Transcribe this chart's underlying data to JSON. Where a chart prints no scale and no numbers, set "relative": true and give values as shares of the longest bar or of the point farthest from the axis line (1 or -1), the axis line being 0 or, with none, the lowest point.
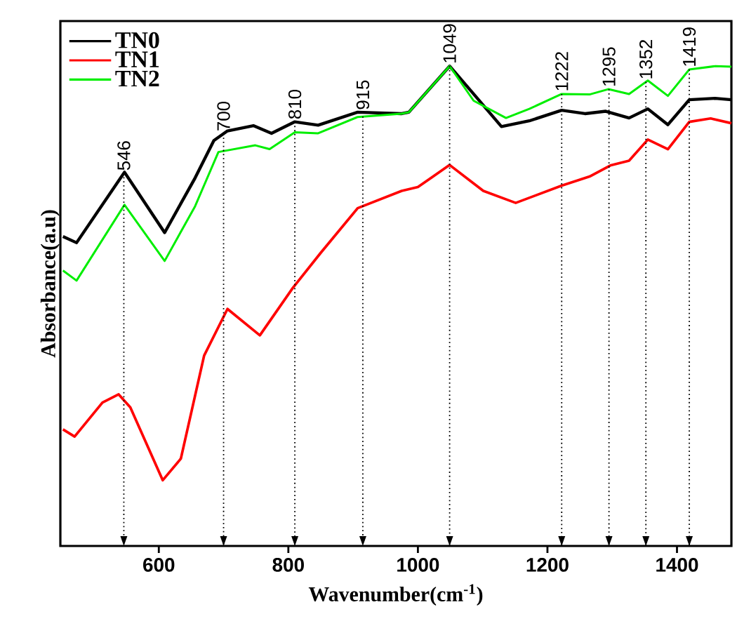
{
  "chart_data": {
    "type": "line",
    "relative": true,
    "xlabel": "Wavenumber(cm$^{-1}$)",
    "ylabel": "Absorbance(a.u)",
    "xlim": [
      448,
      1484
    ],
    "xticks": [
      600,
      800,
      1000,
      1200,
      1400
    ],
    "tick_labels": "x",
    "legend": "top left",
    "line_style": "solid",
    "series": [
      {
        "name": "TN0",
        "color": "#000000",
        "x": [
          452,
          473,
          547,
          609,
          656,
          685,
          706,
          746,
          774,
          810,
          846,
          907,
          975,
          986,
          1049,
          1086,
          1129,
          1172,
          1222,
          1258,
          1290,
          1326,
          1355,
          1386,
          1419,
          1459,
          1484
        ],
        "values": [
          0.645,
          0.632,
          0.779,
          0.653,
          0.767,
          0.845,
          0.865,
          0.876,
          0.86,
          0.884,
          0.877,
          0.904,
          0.901,
          0.904,
          1.0,
          0.942,
          0.874,
          0.886,
          0.908,
          0.901,
          0.906,
          0.892,
          0.911,
          0.878,
          0.93,
          0.933,
          0.93
        ]
      },
      {
        "name": "TN1",
        "color": "#ff0000",
        "x": [
          452,
          470,
          513,
          538,
          556,
          606,
          634,
          670,
          706,
          756,
          807,
          850,
          907,
          975,
          1000,
          1049,
          1101,
          1151,
          1222,
          1265,
          1297,
          1326,
          1355,
          1386,
          1419,
          1452,
          1484
        ],
        "values": [
          0.243,
          0.228,
          0.299,
          0.316,
          0.289,
          0.137,
          0.182,
          0.397,
          0.494,
          0.439,
          0.538,
          0.611,
          0.704,
          0.74,
          0.748,
          0.794,
          0.74,
          0.715,
          0.751,
          0.77,
          0.793,
          0.803,
          0.847,
          0.827,
          0.884,
          0.891,
          0.881
        ]
      },
      {
        "name": "TN2",
        "color": "#00ee00",
        "x": [
          452,
          473,
          547,
          609,
          656,
          692,
          749,
          771,
          810,
          846,
          907,
          975,
          986,
          1049,
          1086,
          1136,
          1172,
          1222,
          1265,
          1294,
          1326,
          1355,
          1386,
          1419,
          1459,
          1484
        ],
        "values": [
          0.574,
          0.553,
          0.711,
          0.594,
          0.708,
          0.821,
          0.835,
          0.827,
          0.862,
          0.86,
          0.894,
          0.901,
          0.904,
          1.0,
          0.928,
          0.892,
          0.911,
          0.942,
          0.941,
          0.952,
          0.942,
          0.97,
          0.938,
          0.993,
          1.0,
          0.999
        ]
      }
    ],
    "ref_lines": [
      {
        "axis": "x",
        "value": 546,
        "label": "546",
        "color": "#000000",
        "line_style": "dotted"
      },
      {
        "axis": "x",
        "value": 700,
        "label": "700",
        "color": "#000000",
        "line_style": "dotted"
      },
      {
        "axis": "x",
        "value": 810,
        "label": "810",
        "color": "#000000",
        "line_style": "dotted"
      },
      {
        "axis": "x",
        "value": 915,
        "label": "915",
        "color": "#000000",
        "line_style": "dotted"
      },
      {
        "axis": "x",
        "value": 1049,
        "label": "1049",
        "color": "#000000",
        "line_style": "dotted"
      },
      {
        "axis": "x",
        "value": 1222,
        "label": "1222",
        "color": "#000000",
        "line_style": "dotted"
      },
      {
        "axis": "x",
        "value": 1295,
        "label": "1295",
        "color": "#000000",
        "line_style": "dotted"
      },
      {
        "axis": "x",
        "value": 1352,
        "label": "1352",
        "color": "#000000",
        "line_style": "dotted"
      },
      {
        "axis": "x",
        "value": 1419,
        "label": "1419",
        "color": "#000000",
        "line_style": "dotted"
      }
    ]
  }
}
